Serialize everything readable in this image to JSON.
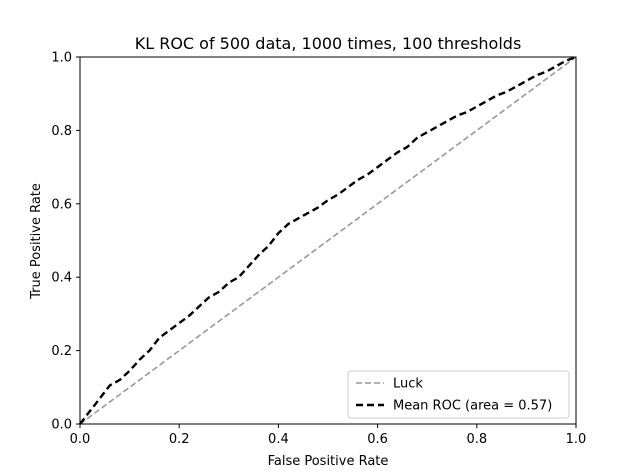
{
  "chart_data": {
    "type": "line",
    "title": "KL ROC of 500 data, 1000 times, 100 thresholds",
    "xlabel": "False Positive Rate",
    "ylabel": "True Positive Rate",
    "xlim": [
      0.0,
      1.0
    ],
    "ylim": [
      0.0,
      1.0
    ],
    "xticks": [
      "0.0",
      "0.2",
      "0.4",
      "0.6",
      "0.8",
      "1.0"
    ],
    "yticks": [
      "0.0",
      "0.2",
      "0.4",
      "0.6",
      "0.8",
      "1.0"
    ],
    "grid": false,
    "legend_position": "lower-right",
    "series": [
      {
        "name": "Luck",
        "style": "dashed",
        "color": "#999999",
        "x": [
          0.0,
          1.0
        ],
        "y": [
          0.0,
          1.0
        ]
      },
      {
        "name": "Mean ROC (area = 0.57)",
        "style": "dashed",
        "color": "#000000",
        "x": [
          0.0,
          0.02,
          0.04,
          0.06,
          0.08,
          0.1,
          0.12,
          0.14,
          0.16,
          0.18,
          0.2,
          0.22,
          0.24,
          0.26,
          0.28,
          0.3,
          0.32,
          0.34,
          0.36,
          0.38,
          0.4,
          0.42,
          0.44,
          0.46,
          0.48,
          0.5,
          0.52,
          0.54,
          0.56,
          0.58,
          0.6,
          0.62,
          0.64,
          0.66,
          0.68,
          0.7,
          0.72,
          0.74,
          0.76,
          0.78,
          0.8,
          0.82,
          0.84,
          0.86,
          0.88,
          0.9,
          0.92,
          0.94,
          0.96,
          0.98,
          1.0
        ],
        "y": [
          0.0,
          0.035,
          0.07,
          0.105,
          0.12,
          0.145,
          0.175,
          0.2,
          0.235,
          0.255,
          0.275,
          0.295,
          0.32,
          0.345,
          0.36,
          0.385,
          0.4,
          0.43,
          0.46,
          0.485,
          0.52,
          0.545,
          0.56,
          0.575,
          0.59,
          0.61,
          0.625,
          0.645,
          0.665,
          0.68,
          0.7,
          0.72,
          0.74,
          0.755,
          0.78,
          0.795,
          0.81,
          0.825,
          0.84,
          0.85,
          0.865,
          0.88,
          0.895,
          0.905,
          0.92,
          0.935,
          0.95,
          0.96,
          0.975,
          0.99,
          1.0
        ]
      }
    ]
  }
}
